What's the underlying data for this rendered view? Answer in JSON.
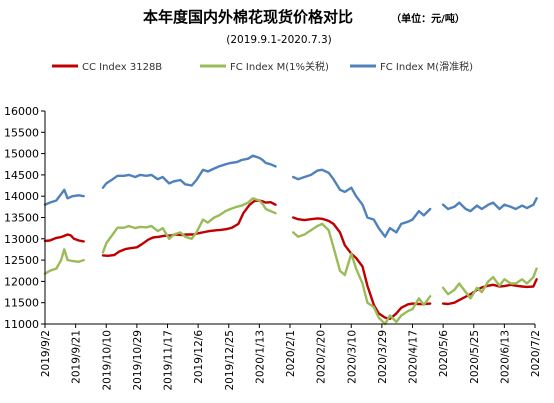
{
  "chart_data": {
    "type": "line",
    "title": "本年度国内外棉花现货价格对比",
    "unit": "（单位：元/吨）",
    "subtitle": "(2019.9.1-2020.7.3)",
    "ylim": [
      11000,
      16000
    ],
    "yticks": [
      11000,
      11500,
      12000,
      12500,
      13000,
      13500,
      14000,
      14500,
      15000,
      15500,
      16000
    ],
    "xticks": [
      "2019/9/2",
      "2019/9/21",
      "2019/10/10",
      "2019/10/29",
      "2019/11/17",
      "2019/12/6",
      "2019/12/25",
      "2020/1/13",
      "2020/2/1",
      "2020/2/20",
      "2020/3/10",
      "2020/3/29",
      "2020/4/17",
      "2020/5/6",
      "2020/5/25",
      "2020/6/13",
      "2020/7/2"
    ],
    "legend_position": "top",
    "series": [
      {
        "name": "CC Index 3128B",
        "color": "#c00000",
        "points": [
          [
            "2019/9/2",
            12950
          ],
          [
            "2019/9/5",
            12960
          ],
          [
            "2019/9/9",
            13020
          ],
          [
            "2019/9/12",
            13040
          ],
          [
            "2019/9/16",
            13100
          ],
          [
            "2019/9/18",
            13080
          ],
          [
            "2019/9/20",
            13000
          ],
          [
            "2019/9/23",
            12960
          ],
          [
            "2019/9/26",
            12940
          ],
          [
            "2019/9/28",
            null
          ],
          [
            "2019/10/8",
            12610
          ],
          [
            "2019/10/11",
            12600
          ],
          [
            "2019/10/15",
            12620
          ],
          [
            "2019/10/18",
            12700
          ],
          [
            "2019/10/22",
            12760
          ],
          [
            "2019/10/25",
            12780
          ],
          [
            "2019/10/29",
            12800
          ],
          [
            "2019/11/1",
            12870
          ],
          [
            "2019/11/5",
            12980
          ],
          [
            "2019/11/8",
            13030
          ],
          [
            "2019/11/12",
            13050
          ],
          [
            "2019/11/15",
            13070
          ],
          [
            "2019/11/19",
            13080
          ],
          [
            "2019/11/22",
            13100
          ],
          [
            "2019/11/26",
            13090
          ],
          [
            "2019/11/29",
            13100
          ],
          [
            "2019/12/3",
            13100
          ],
          [
            "2019/12/6",
            13130
          ],
          [
            "2019/12/10",
            13160
          ],
          [
            "2019/12/13",
            13180
          ],
          [
            "2019/12/17",
            13200
          ],
          [
            "2019/12/20",
            13210
          ],
          [
            "2019/12/24",
            13230
          ],
          [
            "2019/12/27",
            13260
          ],
          [
            "2019/12/31",
            13350
          ],
          [
            "2020/1/3",
            13600
          ],
          [
            "2020/1/7",
            13800
          ],
          [
            "2020/1/10",
            13890
          ],
          [
            "2020/1/13",
            13900
          ],
          [
            "2020/1/15",
            13880
          ],
          [
            "2020/1/17",
            13850
          ],
          [
            "2020/1/20",
            13860
          ],
          [
            "2020/1/23",
            13800
          ],
          [
            "2020/1/25",
            null
          ],
          [
            "2020/2/3",
            13500
          ],
          [
            "2020/2/6",
            13460
          ],
          [
            "2020/2/10",
            13440
          ],
          [
            "2020/2/14",
            13460
          ],
          [
            "2020/2/18",
            13480
          ],
          [
            "2020/2/21",
            13470
          ],
          [
            "2020/2/25",
            13420
          ],
          [
            "2020/2/28",
            13350
          ],
          [
            "2020/3/3",
            13150
          ],
          [
            "2020/3/6",
            12850
          ],
          [
            "2020/3/10",
            12650
          ],
          [
            "2020/3/13",
            12550
          ],
          [
            "2020/3/17",
            12350
          ],
          [
            "2020/3/20",
            11900
          ],
          [
            "2020/3/24",
            11450
          ],
          [
            "2020/3/27",
            11250
          ],
          [
            "2020/3/31",
            11150
          ],
          [
            "2020/4/3",
            11120
          ],
          [
            "2020/4/7",
            11250
          ],
          [
            "2020/4/10",
            11380
          ],
          [
            "2020/4/14",
            11460
          ],
          [
            "2020/4/17",
            11480
          ],
          [
            "2020/4/21",
            11470
          ],
          [
            "2020/4/24",
            11470
          ],
          [
            "2020/4/28",
            11480
          ],
          [
            "2020/5/3",
            null
          ],
          [
            "2020/5/6",
            11480
          ],
          [
            "2020/5/9",
            11470
          ],
          [
            "2020/5/13",
            11500
          ],
          [
            "2020/5/16",
            11560
          ],
          [
            "2020/5/20",
            11640
          ],
          [
            "2020/5/23",
            11700
          ],
          [
            "2020/5/27",
            11800
          ],
          [
            "2020/5/30",
            11860
          ],
          [
            "2020/6/3",
            11900
          ],
          [
            "2020/6/6",
            11920
          ],
          [
            "2020/6/10",
            11880
          ],
          [
            "2020/6/13",
            11890
          ],
          [
            "2020/6/17",
            11920
          ],
          [
            "2020/6/20",
            11900
          ],
          [
            "2020/6/24",
            11880
          ],
          [
            "2020/6/27",
            11870
          ],
          [
            "2020/7/1",
            11880
          ],
          [
            "2020/7/3",
            12050
          ]
        ]
      },
      {
        "name": "FC Index M(1%关税)",
        "color": "#9bbb59",
        "points": [
          [
            "2019/9/2",
            12180
          ],
          [
            "2019/9/5",
            12250
          ],
          [
            "2019/9/9",
            12300
          ],
          [
            "2019/9/12",
            12500
          ],
          [
            "2019/9/14",
            12750
          ],
          [
            "2019/9/16",
            12500
          ],
          [
            "2019/9/19",
            12480
          ],
          [
            "2019/9/23",
            12460
          ],
          [
            "2019/9/26",
            12500
          ],
          [
            "2019/9/28",
            null
          ],
          [
            "2019/10/8",
            12680
          ],
          [
            "2019/10/10",
            12900
          ],
          [
            "2019/10/14",
            13100
          ],
          [
            "2019/10/17",
            13260
          ],
          [
            "2019/10/21",
            13260
          ],
          [
            "2019/10/24",
            13300
          ],
          [
            "2019/10/28",
            13250
          ],
          [
            "2019/10/31",
            13280
          ],
          [
            "2019/11/4",
            13270
          ],
          [
            "2019/11/7",
            13300
          ],
          [
            "2019/11/11",
            13180
          ],
          [
            "2019/11/14",
            13250
          ],
          [
            "2019/11/18",
            13000
          ],
          [
            "2019/11/21",
            13100
          ],
          [
            "2019/11/25",
            13150
          ],
          [
            "2019/11/28",
            13050
          ],
          [
            "2019/12/2",
            13000
          ],
          [
            "2019/12/5",
            13150
          ],
          [
            "2019/12/9",
            13450
          ],
          [
            "2019/12/12",
            13380
          ],
          [
            "2019/12/16",
            13500
          ],
          [
            "2019/12/19",
            13550
          ],
          [
            "2019/12/23",
            13650
          ],
          [
            "2019/12/26",
            13700
          ],
          [
            "2019/12/30",
            13750
          ],
          [
            "2020/1/2",
            13780
          ],
          [
            "2020/1/6",
            13850
          ],
          [
            "2020/1/9",
            13950
          ],
          [
            "2020/1/13",
            13900
          ],
          [
            "2020/1/15",
            13820
          ],
          [
            "2020/1/17",
            13700
          ],
          [
            "2020/1/20",
            13650
          ],
          [
            "2020/1/23",
            13600
          ],
          [
            "2020/1/25",
            null
          ],
          [
            "2020/2/3",
            13150
          ],
          [
            "2020/2/6",
            13050
          ],
          [
            "2020/2/10",
            13100
          ],
          [
            "2020/2/14",
            13200
          ],
          [
            "2020/2/18",
            13300
          ],
          [
            "2020/2/21",
            13350
          ],
          [
            "2020/2/25",
            13200
          ],
          [
            "2020/2/28",
            12800
          ],
          [
            "2020/3/3",
            12250
          ],
          [
            "2020/3/6",
            12150
          ],
          [
            "2020/3/10",
            12650
          ],
          [
            "2020/3/13",
            12300
          ],
          [
            "2020/3/17",
            11950
          ],
          [
            "2020/3/20",
            11500
          ],
          [
            "2020/3/24",
            11400
          ],
          [
            "2020/3/27",
            11150
          ],
          [
            "2020/3/31",
            11000
          ],
          [
            "2020/4/3",
            11200
          ],
          [
            "2020/4/7",
            11050
          ],
          [
            "2020/4/10",
            11200
          ],
          [
            "2020/4/14",
            11300
          ],
          [
            "2020/4/17",
            11350
          ],
          [
            "2020/4/21",
            11600
          ],
          [
            "2020/4/24",
            11450
          ],
          [
            "2020/4/28",
            11650
          ],
          [
            "2020/5/3",
            null
          ],
          [
            "2020/5/6",
            11850
          ],
          [
            "2020/5/9",
            11700
          ],
          [
            "2020/5/13",
            11800
          ],
          [
            "2020/5/16",
            11950
          ],
          [
            "2020/5/20",
            11750
          ],
          [
            "2020/5/23",
            11600
          ],
          [
            "2020/5/27",
            11850
          ],
          [
            "2020/5/30",
            11750
          ],
          [
            "2020/6/3",
            12000
          ],
          [
            "2020/6/6",
            12100
          ],
          [
            "2020/6/10",
            11900
          ],
          [
            "2020/6/13",
            12050
          ],
          [
            "2020/6/17",
            11950
          ],
          [
            "2020/6/20",
            11950
          ],
          [
            "2020/6/24",
            12050
          ],
          [
            "2020/6/27",
            11950
          ],
          [
            "2020/7/1",
            12100
          ],
          [
            "2020/7/3",
            12300
          ]
        ]
      },
      {
        "name": "FC Index M(滑准税)",
        "color": "#4f81bd",
        "points": [
          [
            "2019/9/2",
            13800
          ],
          [
            "2019/9/5",
            13850
          ],
          [
            "2019/9/9",
            13900
          ],
          [
            "2019/9/12",
            14050
          ],
          [
            "2019/9/14",
            14150
          ],
          [
            "2019/9/16",
            13950
          ],
          [
            "2019/9/19",
            14000
          ],
          [
            "2019/9/23",
            14020
          ],
          [
            "2019/9/26",
            14000
          ],
          [
            "2019/9/28",
            null
          ],
          [
            "2019/10/8",
            14200
          ],
          [
            "2019/10/10",
            14300
          ],
          [
            "2019/10/14",
            14400
          ],
          [
            "2019/10/17",
            14480
          ],
          [
            "2019/10/21",
            14480
          ],
          [
            "2019/10/24",
            14500
          ],
          [
            "2019/10/28",
            14450
          ],
          [
            "2019/10/31",
            14500
          ],
          [
            "2019/11/4",
            14480
          ],
          [
            "2019/11/7",
            14500
          ],
          [
            "2019/11/11",
            14400
          ],
          [
            "2019/11/14",
            14450
          ],
          [
            "2019/11/18",
            14300
          ],
          [
            "2019/11/21",
            14350
          ],
          [
            "2019/11/25",
            14380
          ],
          [
            "2019/11/28",
            14280
          ],
          [
            "2019/12/2",
            14250
          ],
          [
            "2019/12/5",
            14380
          ],
          [
            "2019/12/9",
            14620
          ],
          [
            "2019/12/12",
            14580
          ],
          [
            "2019/12/16",
            14650
          ],
          [
            "2019/12/19",
            14700
          ],
          [
            "2019/12/23",
            14750
          ],
          [
            "2019/12/26",
            14780
          ],
          [
            "2019/12/30",
            14800
          ],
          [
            "2020/1/2",
            14850
          ],
          [
            "2020/1/6",
            14880
          ],
          [
            "2020/1/9",
            14950
          ],
          [
            "2020/1/13",
            14900
          ],
          [
            "2020/1/15",
            14850
          ],
          [
            "2020/1/17",
            14780
          ],
          [
            "2020/1/20",
            14750
          ],
          [
            "2020/1/23",
            14700
          ],
          [
            "2020/1/25",
            null
          ],
          [
            "2020/2/3",
            14450
          ],
          [
            "2020/2/6",
            14400
          ],
          [
            "2020/2/10",
            14450
          ],
          [
            "2020/2/14",
            14500
          ],
          [
            "2020/2/18",
            14600
          ],
          [
            "2020/2/21",
            14620
          ],
          [
            "2020/2/25",
            14550
          ],
          [
            "2020/2/28",
            14400
          ],
          [
            "2020/3/3",
            14150
          ],
          [
            "2020/3/6",
            14100
          ],
          [
            "2020/3/10",
            14200
          ],
          [
            "2020/3/13",
            14000
          ],
          [
            "2020/3/17",
            13800
          ],
          [
            "2020/3/20",
            13500
          ],
          [
            "2020/3/24",
            13450
          ],
          [
            "2020/3/27",
            13250
          ],
          [
            "2020/3/31",
            13050
          ],
          [
            "2020/4/3",
            13250
          ],
          [
            "2020/4/7",
            13150
          ],
          [
            "2020/4/10",
            13350
          ],
          [
            "2020/4/14",
            13400
          ],
          [
            "2020/4/17",
            13450
          ],
          [
            "2020/4/21",
            13650
          ],
          [
            "2020/4/24",
            13550
          ],
          [
            "2020/4/28",
            13700
          ],
          [
            "2020/5/3",
            null
          ],
          [
            "2020/5/6",
            13800
          ],
          [
            "2020/5/9",
            13700
          ],
          [
            "2020/5/13",
            13750
          ],
          [
            "2020/5/16",
            13850
          ],
          [
            "2020/5/20",
            13700
          ],
          [
            "2020/5/23",
            13650
          ],
          [
            "2020/5/27",
            13780
          ],
          [
            "2020/5/30",
            13700
          ],
          [
            "2020/6/3",
            13800
          ],
          [
            "2020/6/6",
            13850
          ],
          [
            "2020/6/10",
            13700
          ],
          [
            "2020/6/13",
            13800
          ],
          [
            "2020/6/17",
            13750
          ],
          [
            "2020/6/20",
            13700
          ],
          [
            "2020/6/24",
            13780
          ],
          [
            "2020/6/27",
            13720
          ],
          [
            "2020/7/1",
            13800
          ],
          [
            "2020/7/3",
            13950
          ]
        ]
      }
    ]
  }
}
